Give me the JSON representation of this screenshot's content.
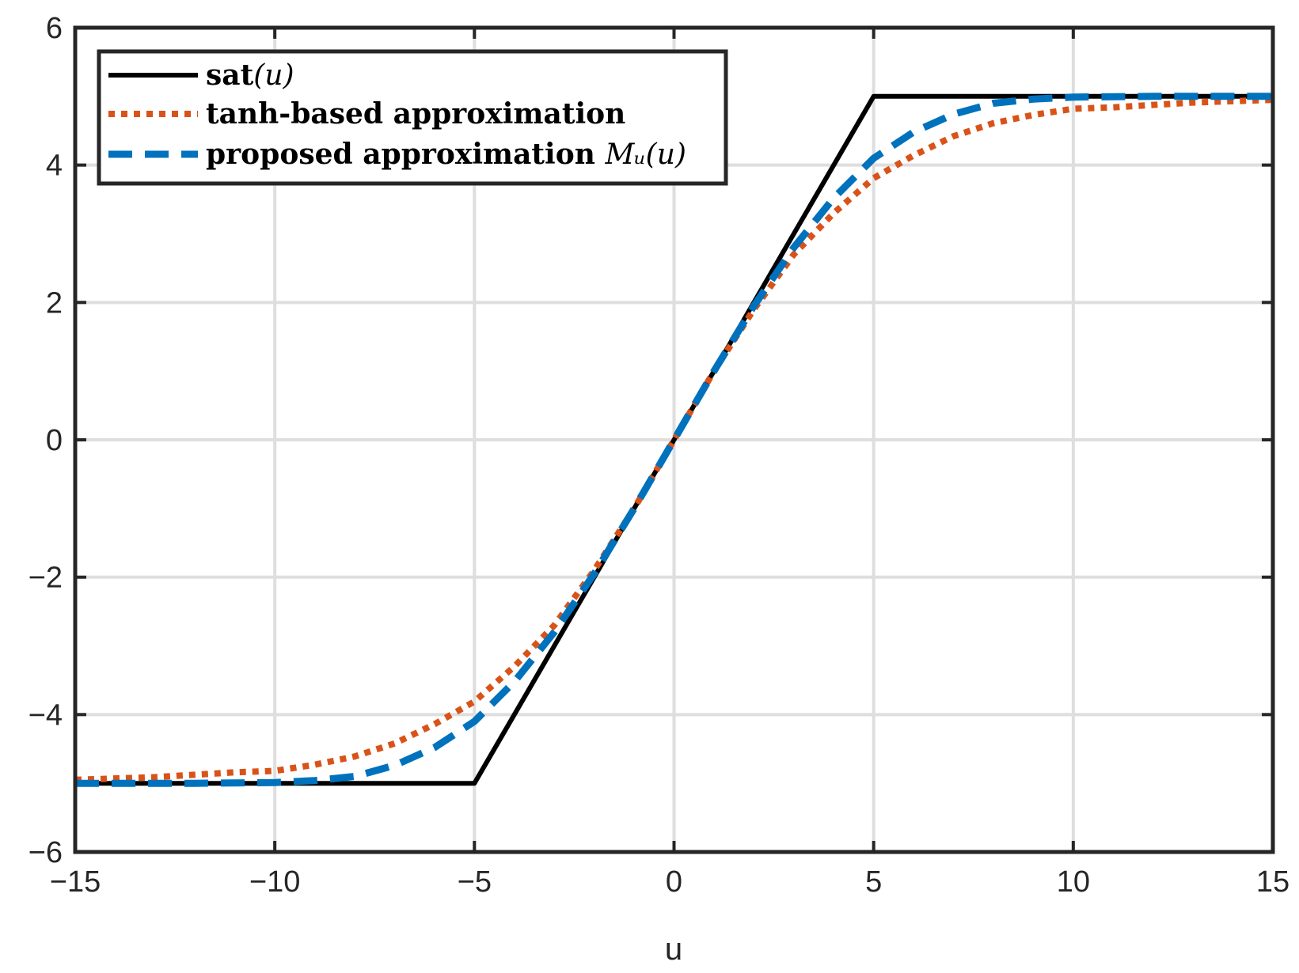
{
  "chart_data": {
    "type": "line",
    "title": "",
    "xlabel": "u",
    "ylabel": "",
    "xlim": [
      -15,
      15
    ],
    "ylim": [
      -6,
      6
    ],
    "xticks": [
      -15,
      -10,
      -5,
      0,
      5,
      10,
      15
    ],
    "yticks": [
      -6,
      -4,
      -2,
      0,
      2,
      4,
      6
    ],
    "xtick_labels": [
      "−15",
      "−10",
      "−5",
      "0",
      "5",
      "10",
      "15"
    ],
    "ytick_labels": [
      "−6",
      "−4",
      "−2",
      "0",
      "2",
      "4",
      "6"
    ],
    "grid": true,
    "legend_position": "top-left",
    "series": [
      {
        "name": "sat(u)",
        "legend_main": "sat",
        "legend_math": "(u)",
        "color": "#000000",
        "style": "solid",
        "x": [
          -15,
          -5,
          5,
          15
        ],
        "y": [
          -5,
          -5,
          5,
          5
        ]
      },
      {
        "name": "tanh-based approximation",
        "legend_main": "tanh-based approximation",
        "legend_math": "",
        "color": "#D95319",
        "style": "dotted",
        "x": [
          -15,
          -13,
          -11,
          -10,
          -9,
          -8,
          -7,
          -6,
          -5,
          -4,
          -3,
          -2,
          -1,
          0,
          1,
          2,
          3,
          4,
          5,
          6,
          7,
          8,
          9,
          10,
          11,
          13,
          15
        ],
        "y": [
          -4.95,
          -4.91,
          -4.84,
          -4.82,
          -4.73,
          -4.61,
          -4.42,
          -4.14,
          -3.81,
          -3.3,
          -2.7,
          -1.9,
          -1.0,
          0,
          1.0,
          1.9,
          2.7,
          3.3,
          3.81,
          4.14,
          4.42,
          4.61,
          4.73,
          4.82,
          4.84,
          4.91,
          4.95
        ]
      },
      {
        "name": "proposed approximation Mu(u)",
        "legend_main": "proposed approximation ",
        "legend_math": "Mᵤ(u)",
        "color": "#0072BD",
        "style": "dashed",
        "x": [
          -15,
          -12,
          -10,
          -9,
          -8,
          -7,
          -6,
          -5,
          -4,
          -3,
          -2,
          -1,
          0,
          1,
          2,
          3,
          4,
          5,
          6,
          7,
          8,
          9,
          10,
          12,
          15
        ],
        "y": [
          -5.0,
          -5.0,
          -4.99,
          -4.96,
          -4.9,
          -4.74,
          -4.48,
          -4.1,
          -3.52,
          -2.8,
          -1.95,
          -1.0,
          0,
          1.0,
          1.95,
          2.8,
          3.52,
          4.1,
          4.48,
          4.74,
          4.9,
          4.96,
          4.99,
          5.0,
          5.0
        ]
      }
    ]
  }
}
